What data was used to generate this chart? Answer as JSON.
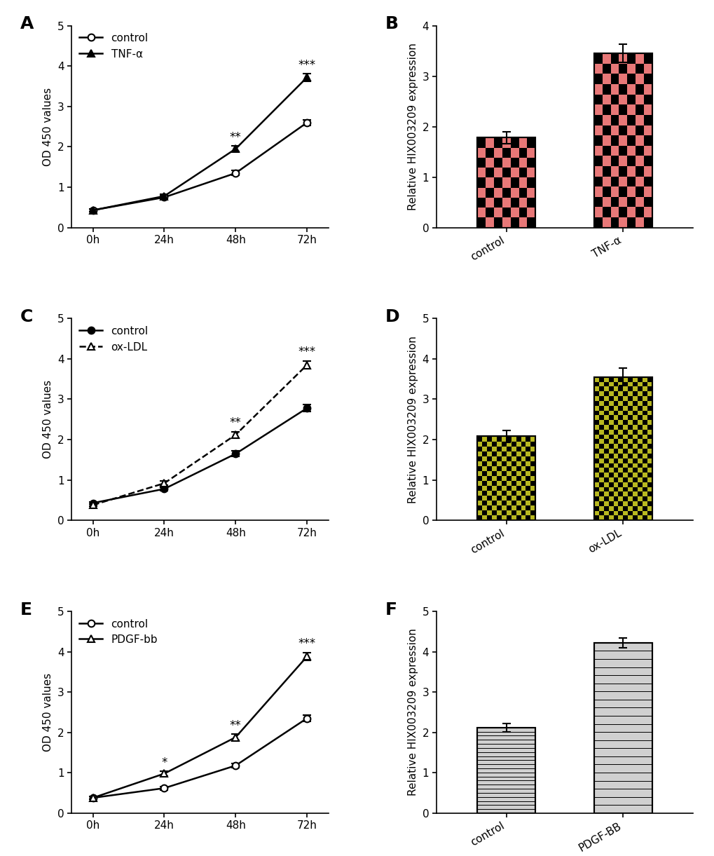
{
  "panel_label_fontsize": 18,
  "timepoints": [
    "0h",
    "24h",
    "48h",
    "72h"
  ],
  "A": {
    "control_mean": [
      0.43,
      0.75,
      1.35,
      2.6
    ],
    "control_err": [
      0.03,
      0.04,
      0.06,
      0.07
    ],
    "treatment_mean": [
      0.43,
      0.78,
      1.95,
      3.72
    ],
    "treatment_err": [
      0.03,
      0.05,
      0.07,
      0.09
    ],
    "treatment_label": "TNF-α",
    "control_filled": false,
    "treatment_filled": true,
    "treatment_linestyle": "solid",
    "treatment_color": "black",
    "sig_48": "**",
    "sig_72": "***",
    "ylim": [
      0,
      5
    ],
    "yticks": [
      0,
      1,
      2,
      3,
      4,
      5
    ]
  },
  "B": {
    "categories": [
      "control",
      "TNF-α"
    ],
    "means": [
      1.78,
      3.45
    ],
    "errors": [
      0.12,
      0.18
    ],
    "bar_color": "#E87878",
    "hatch": "checkerboard_large",
    "ylim": [
      0,
      4
    ],
    "yticks": [
      0,
      1,
      2,
      3,
      4
    ],
    "ylabel": "Relative HIX003209 expression"
  },
  "C": {
    "control_mean": [
      0.43,
      0.78,
      1.65,
      2.78
    ],
    "control_err": [
      0.03,
      0.04,
      0.07,
      0.09
    ],
    "treatment_mean": [
      0.38,
      0.92,
      2.12,
      3.85
    ],
    "treatment_err": [
      0.03,
      0.05,
      0.08,
      0.1
    ],
    "treatment_label": "ox-LDL",
    "control_filled": true,
    "treatment_filled": false,
    "treatment_linestyle": "dashed",
    "treatment_color": "black",
    "sig_48": "**",
    "sig_72": "***",
    "ylim": [
      0,
      5
    ],
    "yticks": [
      0,
      1,
      2,
      3,
      4,
      5
    ]
  },
  "D": {
    "categories": [
      "control",
      "ox-LDL"
    ],
    "means": [
      2.08,
      3.55
    ],
    "errors": [
      0.14,
      0.22
    ],
    "bar_color": "#B8B820",
    "hatch": "checkerboard_small",
    "ylim": [
      0,
      5
    ],
    "yticks": [
      0,
      1,
      2,
      3,
      4,
      5
    ],
    "ylabel": "Relative HIX003209 expression"
  },
  "E": {
    "control_mean": [
      0.38,
      0.62,
      1.18,
      2.35
    ],
    "control_err": [
      0.03,
      0.04,
      0.06,
      0.08
    ],
    "treatment_mean": [
      0.38,
      0.98,
      1.88,
      3.88
    ],
    "treatment_err": [
      0.03,
      0.06,
      0.08,
      0.1
    ],
    "treatment_label": "PDGF-bb",
    "control_filled": false,
    "treatment_filled": false,
    "treatment_linestyle": "solid",
    "treatment_color": "black",
    "sig_24": "*",
    "sig_48": "**",
    "sig_72": "***",
    "ylim": [
      0,
      5
    ],
    "yticks": [
      0,
      1,
      2,
      3,
      4,
      5
    ]
  },
  "F": {
    "categories": [
      "control",
      "PDGF-BB"
    ],
    "means": [
      2.12,
      4.22
    ],
    "errors": [
      0.1,
      0.12
    ],
    "bar_color": "#D0D0D0",
    "hatch": "horizontal_lines",
    "ylim": [
      0,
      5
    ],
    "yticks": [
      0,
      1,
      2,
      3,
      4,
      5
    ],
    "ylabel": "Relative HIX003209 expression"
  },
  "marker_size": 7,
  "linewidth": 1.8,
  "capsize": 4,
  "elinewidth": 1.5,
  "ylabel_fontsize": 11,
  "tick_fontsize": 11,
  "legend_fontsize": 11,
  "sig_fontsize": 12,
  "bar_width": 0.5,
  "bar_edgecolor": "#000000"
}
